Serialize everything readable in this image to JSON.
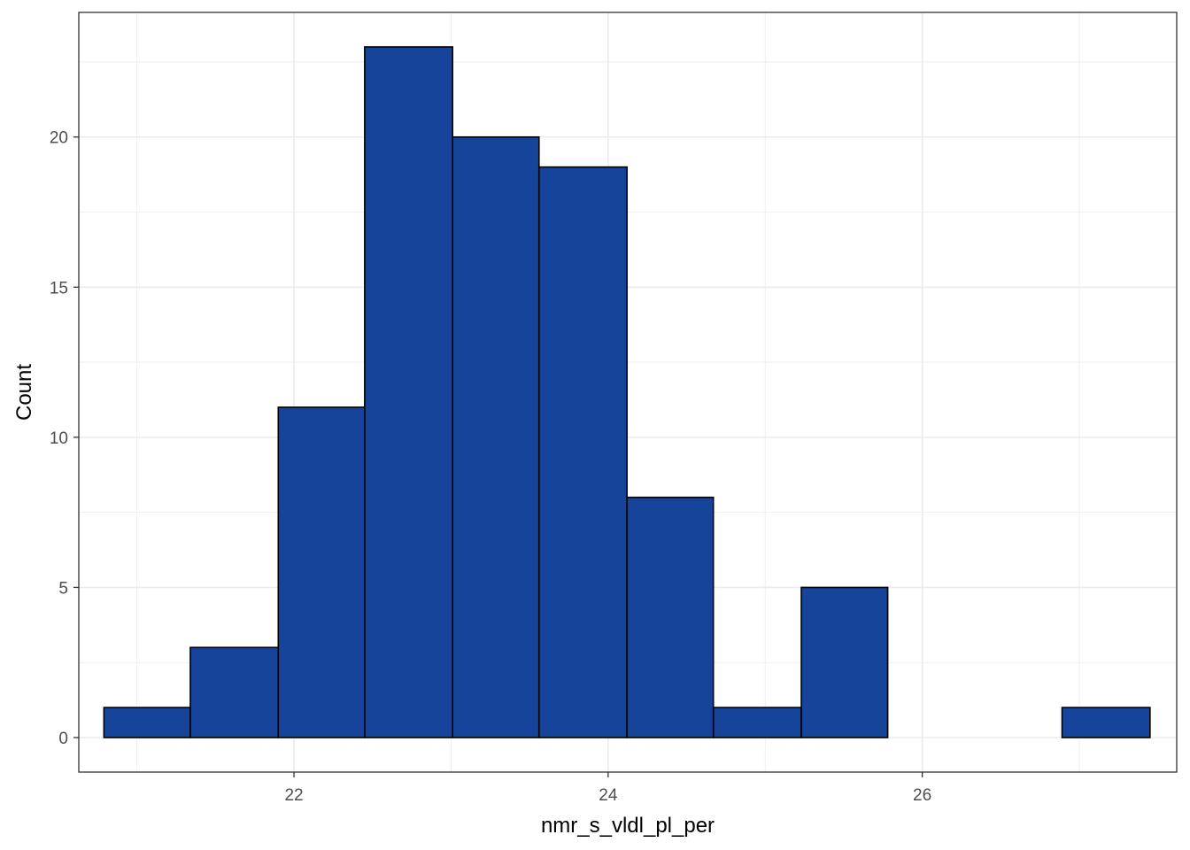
{
  "chart_data": {
    "type": "bar",
    "subtype": "histogram",
    "xlabel": "nmr_s_vldl_pl_per",
    "ylabel": "Count",
    "xlim": [
      20.63,
      27.62
    ],
    "ylim": [
      -1.15,
      24.15
    ],
    "x_ticks": [
      22,
      24,
      26
    ],
    "x_tick_labels": [
      "22",
      "24",
      "26"
    ],
    "x_minor_ticks": [
      21,
      23,
      25,
      27
    ],
    "y_ticks": [
      0,
      5,
      10,
      15,
      20
    ],
    "y_tick_labels": [
      "0",
      "5",
      "10",
      "15",
      "20"
    ],
    "y_minor_ticks": [
      2.5,
      7.5,
      12.5,
      17.5,
      22.5
    ],
    "grid": true,
    "bins": [
      {
        "x0": 20.79,
        "x1": 21.34,
        "count": 1
      },
      {
        "x0": 21.34,
        "x1": 21.9,
        "count": 3
      },
      {
        "x0": 21.9,
        "x1": 22.45,
        "count": 11
      },
      {
        "x0": 22.45,
        "x1": 23.01,
        "count": 23
      },
      {
        "x0": 23.01,
        "x1": 23.56,
        "count": 20
      },
      {
        "x0": 23.56,
        "x1": 24.12,
        "count": 19
      },
      {
        "x0": 24.12,
        "x1": 24.67,
        "count": 8
      },
      {
        "x0": 24.67,
        "x1": 25.23,
        "count": 1
      },
      {
        "x0": 25.23,
        "x1": 25.78,
        "count": 5
      },
      {
        "x0": 25.78,
        "x1": 26.34,
        "count": 0
      },
      {
        "x0": 26.34,
        "x1": 26.89,
        "count": 0
      },
      {
        "x0": 26.89,
        "x1": 27.45,
        "count": 1
      }
    ],
    "bar_fill": "#17449b",
    "bar_stroke": "#000000",
    "panel_border": "#333333",
    "grid_color": "#ebebeb"
  }
}
